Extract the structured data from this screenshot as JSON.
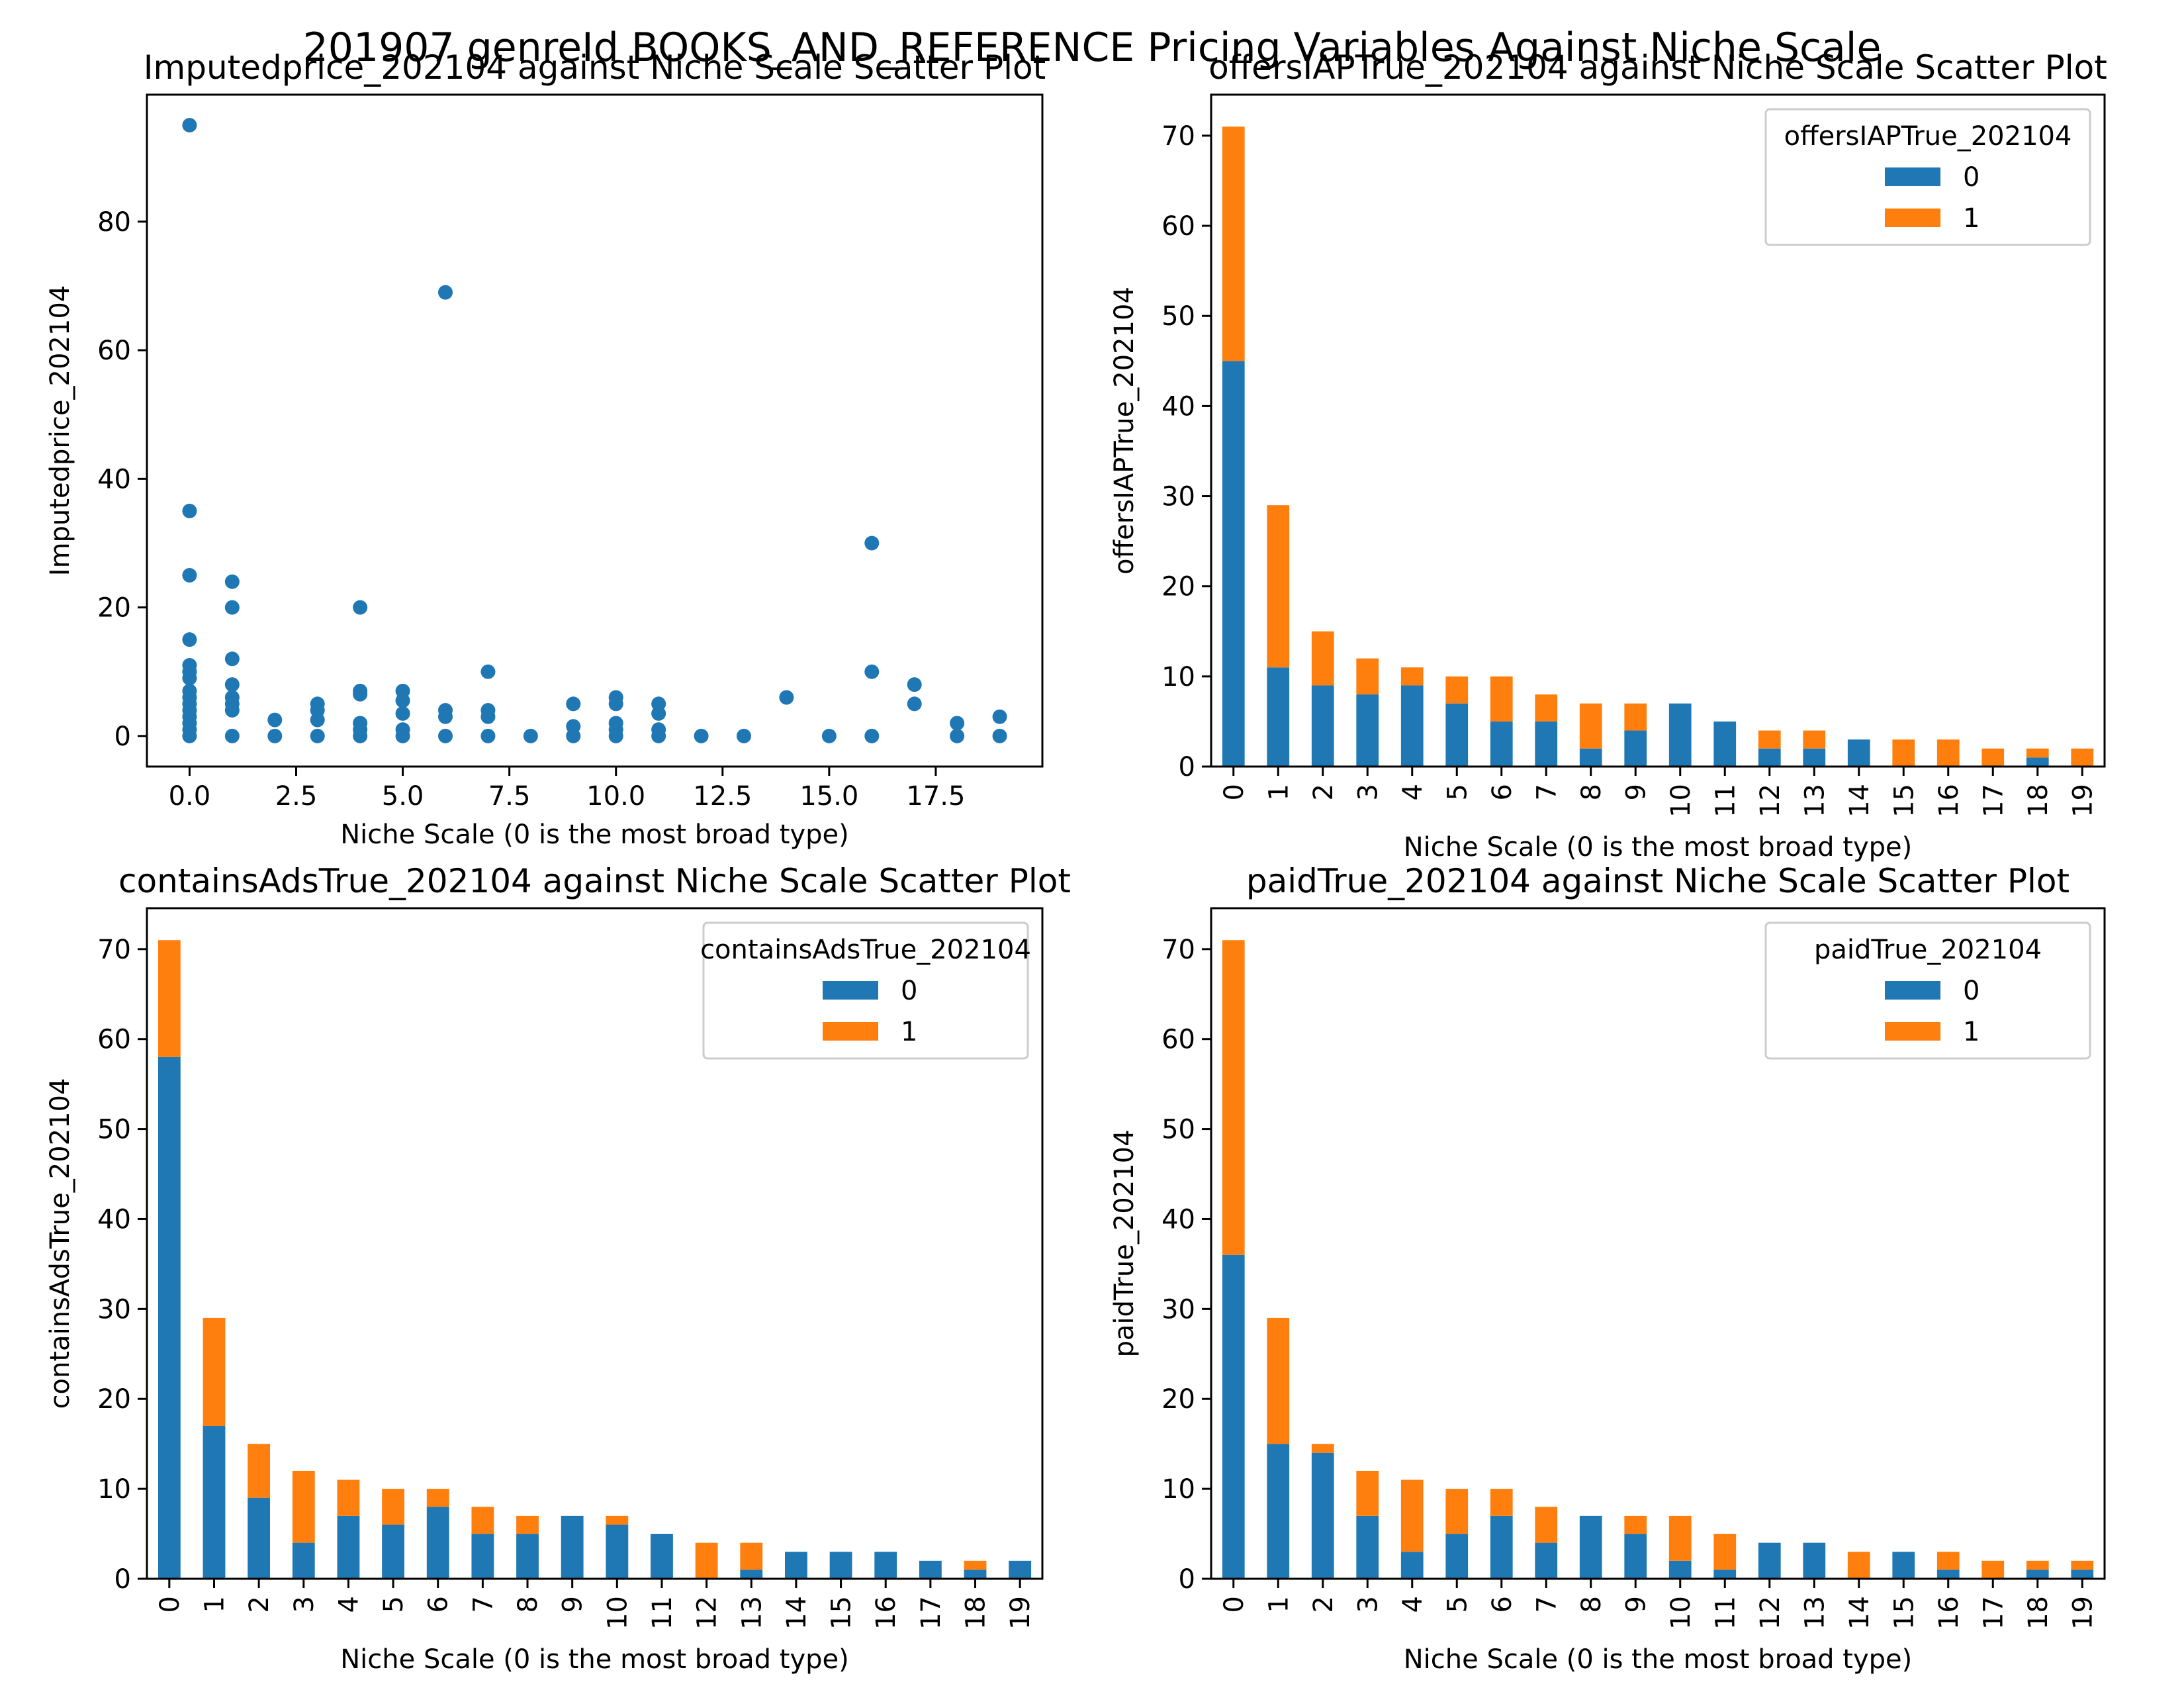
{
  "figure": {
    "suptitle": "201907 genreId BOOKS_AND_REFERENCE Pricing Variables Against Niche Scale"
  },
  "colors": {
    "series0": "#1f77b4",
    "series1": "#ff7f0e"
  },
  "chart_data": [
    {
      "type": "scatter",
      "title": "Imputedprice_202104 against Niche Scale Scatter Plot",
      "xlabel": "Niche Scale (0 is the most broad type)",
      "ylabel": "Imputedprice_202104",
      "xlim": [
        -1,
        20
      ],
      "ylim": [
        -4.75,
        99.75
      ],
      "xticks": [
        0.0,
        2.5,
        5.0,
        7.5,
        10.0,
        12.5,
        15.0,
        17.5
      ],
      "xtick_labels": [
        "0.0",
        "2.5",
        "5.0",
        "7.5",
        "10.0",
        "12.5",
        "15.0",
        "17.5"
      ],
      "yticks": [
        0,
        20,
        40,
        60,
        80
      ],
      "ytick_labels": [
        "0",
        "20",
        "40",
        "60",
        "80"
      ],
      "color": "#1f77b4",
      "points": [
        [
          0,
          95
        ],
        [
          0,
          35
        ],
        [
          0,
          25
        ],
        [
          0,
          15
        ],
        [
          0,
          11
        ],
        [
          0,
          10
        ],
        [
          0,
          9
        ],
        [
          0,
          7
        ],
        [
          0,
          6
        ],
        [
          0,
          5
        ],
        [
          0,
          4
        ],
        [
          0,
          3
        ],
        [
          0,
          2
        ],
        [
          0,
          1
        ],
        [
          0,
          0
        ],
        [
          1,
          24
        ],
        [
          1,
          20
        ],
        [
          1,
          12
        ],
        [
          1,
          8
        ],
        [
          1,
          6
        ],
        [
          1,
          5
        ],
        [
          1,
          4
        ],
        [
          1,
          0
        ],
        [
          2,
          2.5
        ],
        [
          2,
          0
        ],
        [
          3,
          5
        ],
        [
          3,
          4
        ],
        [
          3,
          2.5
        ],
        [
          3,
          0
        ],
        [
          4,
          20
        ],
        [
          4,
          7
        ],
        [
          4,
          6.5
        ],
        [
          4,
          2
        ],
        [
          4,
          1
        ],
        [
          4,
          0
        ],
        [
          5,
          7
        ],
        [
          5,
          5.5
        ],
        [
          5,
          3.5
        ],
        [
          5,
          1
        ],
        [
          5,
          0
        ],
        [
          6,
          69
        ],
        [
          6,
          4
        ],
        [
          6,
          3
        ],
        [
          6,
          0
        ],
        [
          7,
          10
        ],
        [
          7,
          4
        ],
        [
          7,
          3
        ],
        [
          7,
          0
        ],
        [
          8,
          0
        ],
        [
          9,
          5
        ],
        [
          9,
          1.5
        ],
        [
          9,
          0
        ],
        [
          10,
          6
        ],
        [
          10,
          5
        ],
        [
          10,
          2
        ],
        [
          10,
          1
        ],
        [
          10,
          0
        ],
        [
          11,
          5
        ],
        [
          11,
          3.5
        ],
        [
          11,
          1
        ],
        [
          11,
          0
        ],
        [
          12,
          0
        ],
        [
          13,
          0
        ],
        [
          14,
          6
        ],
        [
          15,
          0
        ],
        [
          16,
          30
        ],
        [
          16,
          10
        ],
        [
          16,
          0
        ],
        [
          17,
          8
        ],
        [
          17,
          5
        ],
        [
          18,
          2
        ],
        [
          18,
          0
        ],
        [
          19,
          3
        ],
        [
          19,
          0
        ]
      ]
    },
    {
      "type": "bar",
      "stacked": true,
      "title": "offersIAPTrue_202104 against Niche Scale Scatter Plot",
      "xlabel": "Niche Scale (0 is the most broad type)",
      "ylabel": "offersIAPTrue_202104",
      "ylim": [
        0,
        74.55
      ],
      "yticks": [
        0,
        10,
        20,
        30,
        40,
        50,
        60,
        70
      ],
      "legend": {
        "title": "offersIAPTrue_202104",
        "position": "upper right"
      },
      "categories": [
        "0",
        "1",
        "2",
        "3",
        "4",
        "5",
        "6",
        "7",
        "8",
        "9",
        "10",
        "11",
        "12",
        "13",
        "14",
        "15",
        "16",
        "17",
        "18",
        "19"
      ],
      "series": [
        {
          "name": "0",
          "values": [
            45,
            11,
            9,
            8,
            9,
            7,
            5,
            5,
            2,
            4,
            7,
            5,
            2,
            2,
            3,
            0,
            0,
            0,
            1,
            0
          ]
        },
        {
          "name": "1",
          "values": [
            26,
            18,
            6,
            4,
            2,
            3,
            5,
            3,
            5,
            3,
            0,
            0,
            2,
            2,
            0,
            3,
            3,
            2,
            1,
            2
          ]
        }
      ]
    },
    {
      "type": "bar",
      "stacked": true,
      "title": "containsAdsTrue_202104 against Niche Scale Scatter Plot",
      "xlabel": "Niche Scale (0 is the most broad type)",
      "ylabel": "containsAdsTrue_202104",
      "ylim": [
        0,
        74.55
      ],
      "yticks": [
        0,
        10,
        20,
        30,
        40,
        50,
        60,
        70
      ],
      "legend": {
        "title": "containsAdsTrue_202104",
        "position": "upper right"
      },
      "categories": [
        "0",
        "1",
        "2",
        "3",
        "4",
        "5",
        "6",
        "7",
        "8",
        "9",
        "10",
        "11",
        "12",
        "13",
        "14",
        "15",
        "16",
        "17",
        "18",
        "19"
      ],
      "series": [
        {
          "name": "0",
          "values": [
            58,
            17,
            9,
            4,
            7,
            6,
            8,
            5,
            5,
            7,
            6,
            5,
            0,
            1,
            3,
            3,
            3,
            2,
            1,
            2
          ]
        },
        {
          "name": "1",
          "values": [
            13,
            12,
            6,
            8,
            4,
            4,
            2,
            3,
            2,
            0,
            1,
            0,
            4,
            3,
            0,
            0,
            0,
            0,
            1,
            0
          ]
        }
      ]
    },
    {
      "type": "bar",
      "stacked": true,
      "title": "paidTrue_202104 against Niche Scale Scatter Plot",
      "xlabel": "Niche Scale (0 is the most broad type)",
      "ylabel": "paidTrue_202104",
      "ylim": [
        0,
        74.55
      ],
      "yticks": [
        0,
        10,
        20,
        30,
        40,
        50,
        60,
        70
      ],
      "legend": {
        "title": "paidTrue_202104",
        "position": "upper right"
      },
      "categories": [
        "0",
        "1",
        "2",
        "3",
        "4",
        "5",
        "6",
        "7",
        "8",
        "9",
        "10",
        "11",
        "12",
        "13",
        "14",
        "15",
        "16",
        "17",
        "18",
        "19"
      ],
      "series": [
        {
          "name": "0",
          "values": [
            36,
            15,
            14,
            7,
            3,
            5,
            7,
            4,
            7,
            5,
            2,
            1,
            4,
            4,
            0,
            3,
            1,
            0,
            1,
            1
          ]
        },
        {
          "name": "1",
          "values": [
            35,
            14,
            1,
            5,
            8,
            5,
            3,
            4,
            0,
            2,
            5,
            4,
            0,
            0,
            3,
            0,
            2,
            2,
            1,
            1
          ]
        }
      ]
    }
  ]
}
